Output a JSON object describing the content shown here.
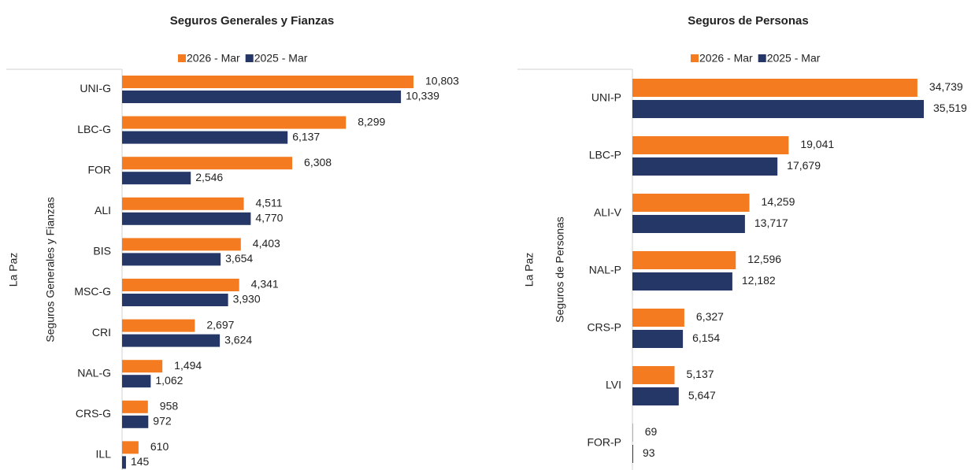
{
  "chart_data": [
    {
      "type": "bar",
      "orientation": "horizontal",
      "title": "Seguros Generales y Fianzas",
      "group_labels": [
        "La Paz",
        "Seguros Generales y Fianzas"
      ],
      "categories": [
        "UNI-G",
        "LBC-G",
        "FOR",
        "ALI",
        "BIS",
        "MSC-G",
        "CRI",
        "NAL-G",
        "CRS-G",
        "ILL"
      ],
      "series": [
        {
          "name": "2026 - Mar",
          "color": "#f47b20",
          "values": [
            10803,
            8299,
            6308,
            4511,
            4403,
            4341,
            2697,
            1494,
            958,
            610
          ],
          "value_labels": [
            "10,803",
            "8,299",
            "6,308",
            "4,511",
            "4,403",
            "4,341",
            "2,697",
            "1,494",
            "958",
            "610"
          ]
        },
        {
          "name": "2025 - Mar",
          "color": "#253766",
          "values": [
            10339,
            6137,
            2546,
            4770,
            3654,
            3930,
            3624,
            1062,
            972,
            145
          ],
          "value_labels": [
            "10,339",
            "6,137",
            "2,546",
            "4,770",
            "3,654",
            "3,930",
            "3,624",
            "1,062",
            "972",
            "145"
          ]
        }
      ]
    },
    {
      "type": "bar",
      "orientation": "horizontal",
      "title": "Seguros de Personas",
      "group_labels": [
        "La Paz",
        "Seguros de Personas"
      ],
      "categories": [
        "UNI-P",
        "LBC-P",
        "ALI-V",
        "NAL-P",
        "CRS-P",
        "LVI",
        "FOR-P"
      ],
      "series": [
        {
          "name": "2026 - Mar",
          "color": "#f47b20",
          "values": [
            34739,
            19041,
            14259,
            12596,
            6327,
            5137,
            69
          ],
          "value_labels": [
            "34,739",
            "19,041",
            "14,259",
            "12,596",
            "6,327",
            "5,137",
            "69"
          ]
        },
        {
          "name": "2025 - Mar",
          "color": "#253766",
          "values": [
            35519,
            17679,
            13717,
            12182,
            6154,
            5647,
            93
          ],
          "value_labels": [
            "35,519",
            "17,679",
            "13,717",
            "12,182",
            "6,154",
            "5,647",
            "93"
          ]
        }
      ]
    }
  ]
}
